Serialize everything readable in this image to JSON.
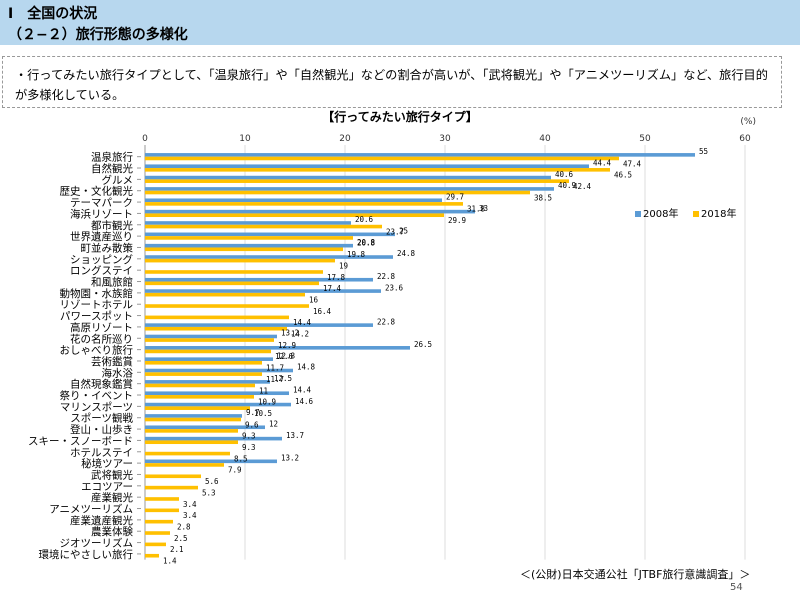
{
  "header": {
    "line1": "Ⅰ　全国の状況",
    "line2": "（２−２）旅行形態の多様化"
  },
  "summary": "・行ってみたい旅行タイプとして、「温泉旅行」や「自然観光」などの割合が高いが、「武将観光」や「アニメツーリズム」など、旅行目的が多様化している。",
  "chart_data": {
    "type": "bar",
    "orientation": "horizontal",
    "title": "【行ってみたい旅行タイプ】",
    "unit": "(%)",
    "xlim": [
      0,
      60
    ],
    "ticks": [
      0,
      10,
      20,
      30,
      40,
      50,
      60
    ],
    "legend": "right",
    "categories": [
      "温泉旅行",
      "自然観光",
      "グルメ",
      "歴史・文化観光",
      "テーマパーク",
      "海浜リゾート",
      "都市観光",
      "世界遺産巡り",
      "町並み散策",
      "ショッピング",
      "ロングステイ",
      "和風旅館",
      "動物園・水族館",
      "リゾートホテル",
      "パワースポット",
      "高原リゾート",
      "花の名所巡り",
      "おしゃべり旅行",
      "芸術鑑賞",
      "海水浴",
      "自然現象鑑賞",
      "祭り・イベント",
      "マリンスポーツ",
      "スポーツ観戦",
      "登山・山歩き",
      "スキー・スノーボード",
      "ホテルステイ",
      "秘境ツアー",
      "武将観光",
      "エコツアー",
      "産業観光",
      "アニメツーリズム",
      "産業遺産観光",
      "農業体験",
      "ジオツーリズム",
      "環境にやさしい旅行"
    ],
    "series": [
      {
        "name": "2008年",
        "color": "#5b9bd5",
        "values": [
          55,
          44.4,
          40.6,
          40.9,
          29.7,
          33,
          20.6,
          25,
          20.8,
          24.8,
          null,
          22.8,
          23.6,
          null,
          null,
          22.8,
          13.2,
          26.5,
          12.8,
          14.8,
          12.5,
          14.4,
          14.6,
          9.7,
          12,
          13.7,
          null,
          13.2,
          null,
          null,
          null,
          null,
          null,
          null,
          null,
          null
        ],
        "labels": [
          "55",
          "44.4",
          "40.6",
          "40.9",
          "29.7",
          "33",
          "20.6",
          "25",
          "20.8",
          "24.8",
          "",
          "22.8",
          "23.6",
          "",
          "",
          "22.8",
          "13.2",
          "26.5",
          "12.8",
          "14.8",
          "12.5",
          "14.4",
          "14.6",
          "9.7",
          "12",
          "13.7",
          "",
          "13.2",
          "",
          "",
          "",
          "",
          "",
          "",
          "",
          ""
        ]
      },
      {
        "name": "2018年",
        "color": "#ffc000",
        "values": [
          47.4,
          46.5,
          42.4,
          38.5,
          31.8,
          29.9,
          23.7,
          20.8,
          19.8,
          19,
          17.8,
          17.4,
          16,
          16.4,
          14.4,
          14.2,
          12.9,
          12.6,
          11.7,
          11.7,
          11,
          10.9,
          10.5,
          9.6,
          9.3,
          9.3,
          8.5,
          7.9,
          5.6,
          5.3,
          3.4,
          3.4,
          2.8,
          2.5,
          2.1,
          1.4
        ],
        "labels": [
          "47.4",
          "46.5",
          "42.4",
          "38.5",
          "31.8",
          "29.9",
          "23.7",
          "20.8",
          "19.8",
          "19",
          "17.8",
          "17.4",
          "16",
          "16.4",
          "14.4",
          "14.2",
          "12.9",
          "12.6",
          "11.7",
          "11.7",
          "11",
          "10.9",
          "10.5",
          "9.6",
          "9.3",
          "9.3",
          "8.5",
          "7.9",
          "5.6",
          "5.3",
          "3.4",
          "3.4",
          "2.8",
          "2.5",
          "2.1",
          "1.4"
        ]
      }
    ]
  },
  "source": "＜(公財)日本交通公社「JTBF旅行意識調査」＞",
  "page_number": "54"
}
